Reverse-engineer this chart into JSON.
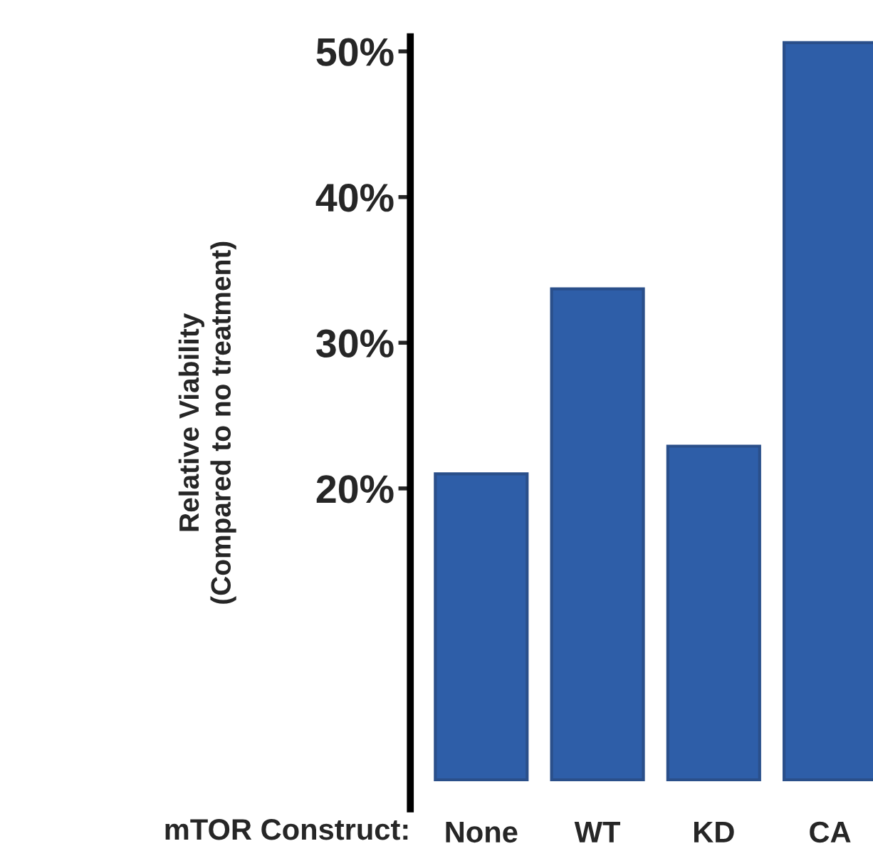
{
  "chart_data": {
    "type": "bar",
    "xlabel": "mTOR Construct:",
    "ylabel": "Relative Viability\n(Compared to no treatment)",
    "categories": [
      "None",
      "WT",
      "KD",
      "CA"
    ],
    "values": [
      21.0,
      33.7,
      22.9,
      50.6
    ],
    "color": "#2e5ea8",
    "ylim": [
      -2,
      51
    ],
    "yticks": [
      {
        "value": 20,
        "label": "20%"
      },
      {
        "value": 30,
        "label": "30%"
      },
      {
        "value": 40,
        "label": "40%"
      },
      {
        "value": 50,
        "label": "50%"
      }
    ],
    "grid": false
  }
}
